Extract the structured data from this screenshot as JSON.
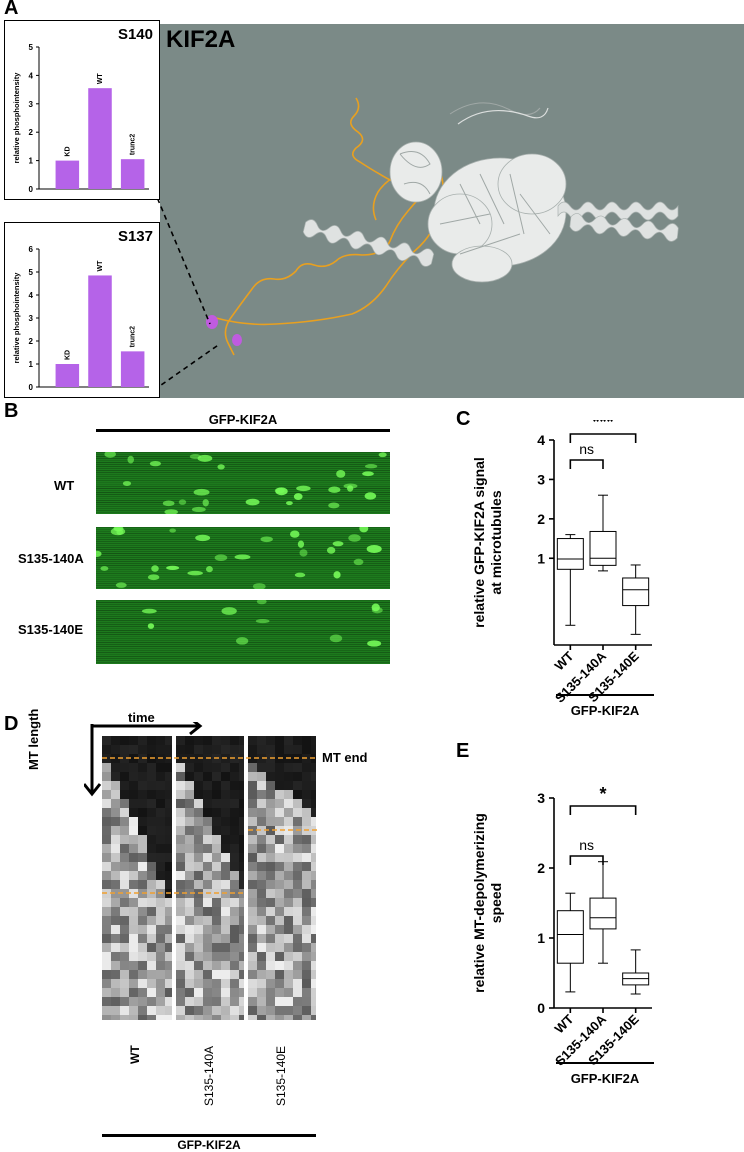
{
  "panel_letters": {
    "a": "A",
    "b": "B",
    "c": "C",
    "d": "D",
    "e": "E"
  },
  "structure": {
    "title": "KIF2A",
    "bg_color": "#7b8a87",
    "linker_color": "#e8a020",
    "marker_color": "#c05be0"
  },
  "bar_color": "#b563e8",
  "chart_data": [
    {
      "id": "s140",
      "type": "bar",
      "title": "S140",
      "ylabel": "relative phosphointensity",
      "categories": [
        "KD",
        "WT",
        "trunc2"
      ],
      "values": [
        1.0,
        3.55,
        1.05
      ],
      "yticks": [
        "0",
        "1",
        "2",
        "3",
        "4",
        "5"
      ],
      "ylim": [
        0,
        5
      ]
    },
    {
      "id": "s137",
      "type": "bar",
      "title": "S137",
      "ylabel": "relative phosphointensity",
      "categories": [
        "KD",
        "WT",
        "trunc2"
      ],
      "values": [
        1.0,
        4.85,
        1.55
      ],
      "yticks": [
        "0",
        "1",
        "2",
        "3",
        "4",
        "5",
        "6"
      ],
      "ylim": [
        0,
        6
      ]
    },
    {
      "id": "c",
      "type": "box",
      "ylabel_lines": [
        "relative GFP-KIF2A signal",
        "at microtubules"
      ],
      "categories": [
        "WT",
        "S135-140A",
        "S135-140E"
      ],
      "yticks": [
        "1",
        "2",
        "3",
        "4"
      ],
      "ylim": [
        -1.2,
        4
      ],
      "boxes": [
        {
          "min": -0.7,
          "q1": 0.72,
          "median": 0.98,
          "q3": 1.5,
          "max": 1.6
        },
        {
          "min": 0.68,
          "q1": 0.82,
          "median": 1.0,
          "q3": 1.68,
          "max": 2.6
        },
        {
          "min": -0.93,
          "q1": -0.2,
          "median": 0.2,
          "q3": 0.5,
          "max": 0.83
        }
      ],
      "group_label": "GFP-KIF2A",
      "comparisons": [
        {
          "from": 0,
          "to": 1,
          "label": "ns"
        },
        {
          "from": 0,
          "to": 2,
          "label": "***"
        }
      ]
    },
    {
      "id": "e",
      "type": "box",
      "ylabel_lines": [
        "relative MT-depolymerizing",
        "speed"
      ],
      "categories": [
        "WT",
        "S135-140A",
        "S135-140E"
      ],
      "yticks": [
        "0",
        "1",
        "2",
        "3"
      ],
      "ylim": [
        0,
        3
      ],
      "boxes": [
        {
          "min": 0.23,
          "q1": 0.64,
          "median": 1.05,
          "q3": 1.39,
          "max": 1.64
        },
        {
          "min": 0.64,
          "q1": 1.13,
          "median": 1.29,
          "q3": 1.57,
          "max": 2.09
        },
        {
          "min": 0.2,
          "q1": 0.33,
          "median": 0.42,
          "q3": 0.5,
          "max": 0.83
        }
      ],
      "group_label": "GFP-KIF2A",
      "comparisons": [
        {
          "from": 0,
          "to": 1,
          "label": "ns"
        },
        {
          "from": 0,
          "to": 2,
          "label": "*"
        }
      ]
    }
  ],
  "panel_b": {
    "header": "GFP-KIF2A",
    "rows": [
      "WT",
      "S135-140A",
      "S135-140E"
    ]
  },
  "panel_d": {
    "time_label": "time",
    "length_label": "MT length",
    "end_label": "MT end",
    "columns": [
      "WT",
      "S135-140A",
      "S135-140E"
    ],
    "group_label": "GFP-KIF2A",
    "dash_color": "#f0a030"
  }
}
